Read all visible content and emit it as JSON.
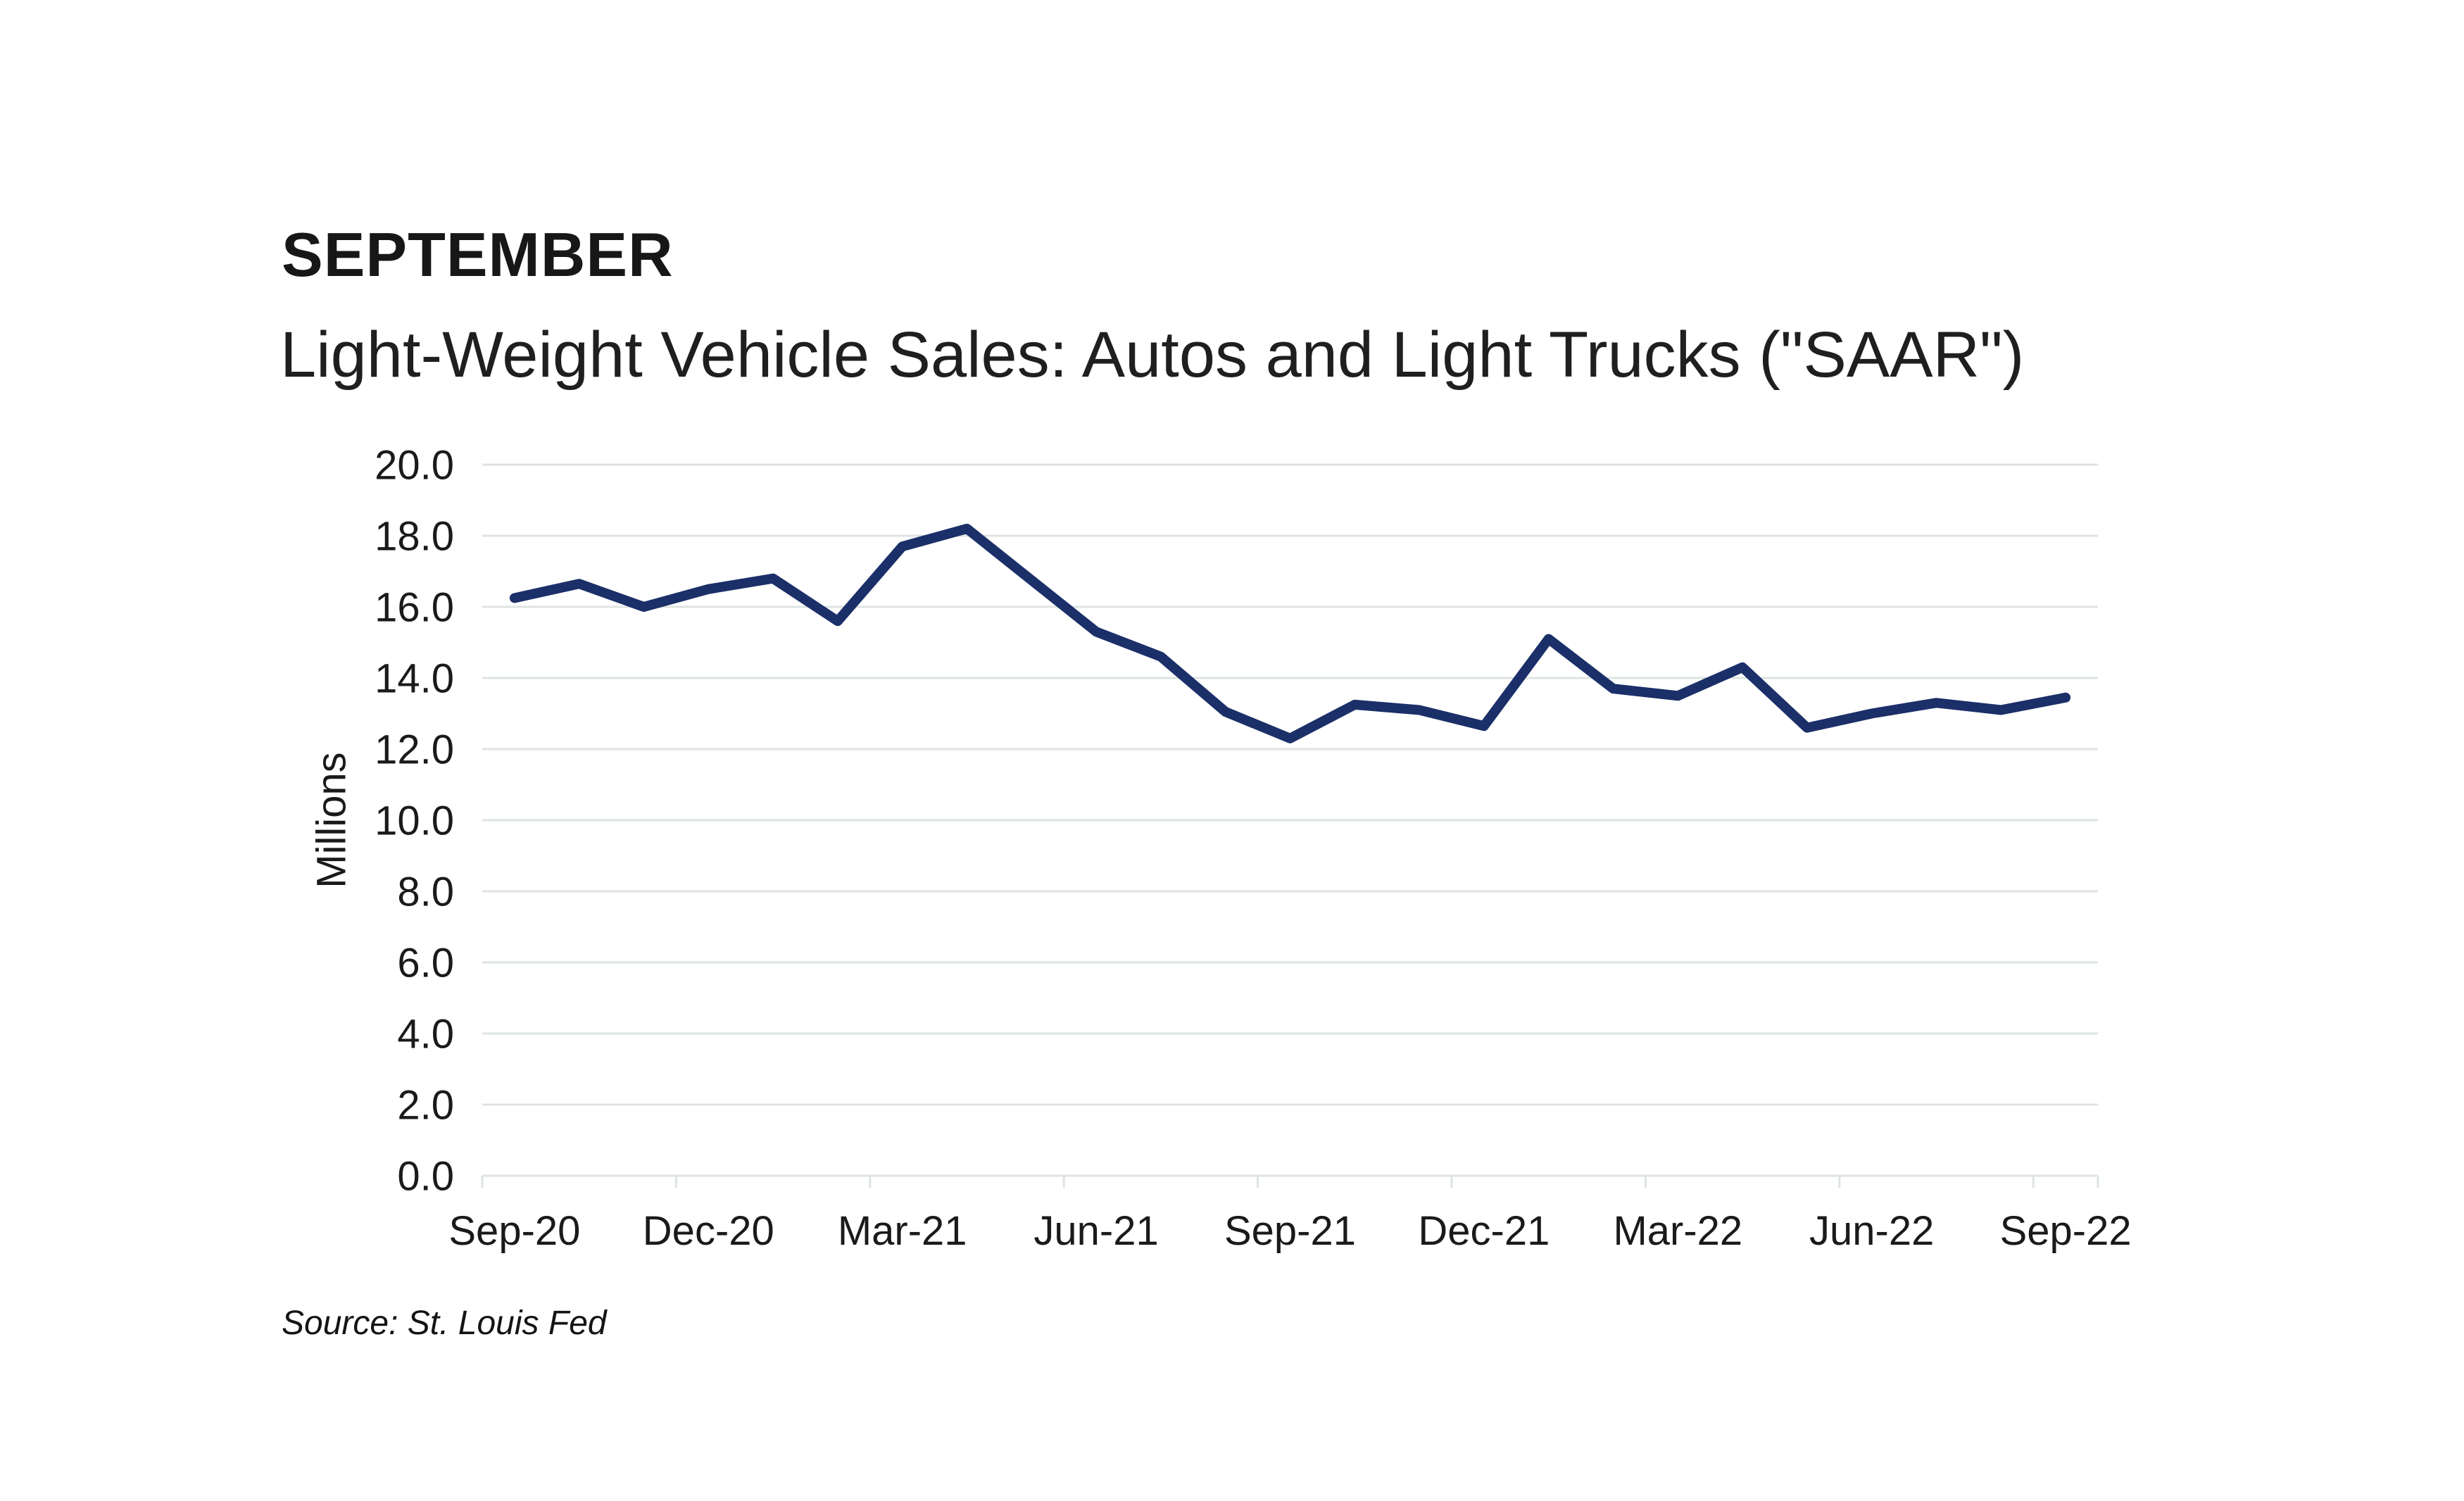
{
  "header": {
    "title": "SEPTEMBER",
    "subtitle": "Light-Weight Vehicle Sales: Autos and Light Trucks (\"SAAR\")"
  },
  "source_note": "Source: St. Louis Fed",
  "chart_data": {
    "type": "line",
    "title": "Light-Weight Vehicle Sales: Autos and Light Trucks (\"SAAR\")",
    "ylabel": "Millions",
    "xlabel": "",
    "categories": [
      "Sep-20",
      "Oct-20",
      "Nov-20",
      "Dec-20",
      "Jan-21",
      "Feb-21",
      "Mar-21",
      "Apr-21",
      "May-21",
      "Jun-21",
      "Jul-21",
      "Aug-21",
      "Sep-21",
      "Oct-21",
      "Nov-21",
      "Dec-21",
      "Jan-22",
      "Feb-22",
      "Mar-22",
      "Apr-22",
      "May-22",
      "Jun-22",
      "Jul-22",
      "Aug-22",
      "Sep-22"
    ],
    "values": [
      16.25,
      16.65,
      16.0,
      16.5,
      16.8,
      15.6,
      17.7,
      18.2,
      16.75,
      15.3,
      14.6,
      13.05,
      12.3,
      13.25,
      13.1,
      12.65,
      15.1,
      13.7,
      13.5,
      14.3,
      12.6,
      13.0,
      13.3,
      13.1,
      13.45
    ],
    "x_tick_labels": [
      "Sep-20",
      "Dec-20",
      "Mar-21",
      "Jun-21",
      "Sep-21",
      "Dec-21",
      "Mar-22",
      "Jun-22",
      "Sep-22"
    ],
    "x_tick_every": 3,
    "y_tick_labels": [
      "0.0",
      "2.0",
      "4.0",
      "6.0",
      "8.0",
      "10.0",
      "12.0",
      "14.0",
      "16.0",
      "18.0",
      "20.0"
    ],
    "ylim": [
      0,
      20
    ],
    "ytick_step": 2,
    "grid": "horizontal-only",
    "legend": "none",
    "line_color": "#1b2f68",
    "grid_color": "#dee4e1",
    "axis_color": "#dee4e1",
    "text_color": "#1a1a1a"
  }
}
